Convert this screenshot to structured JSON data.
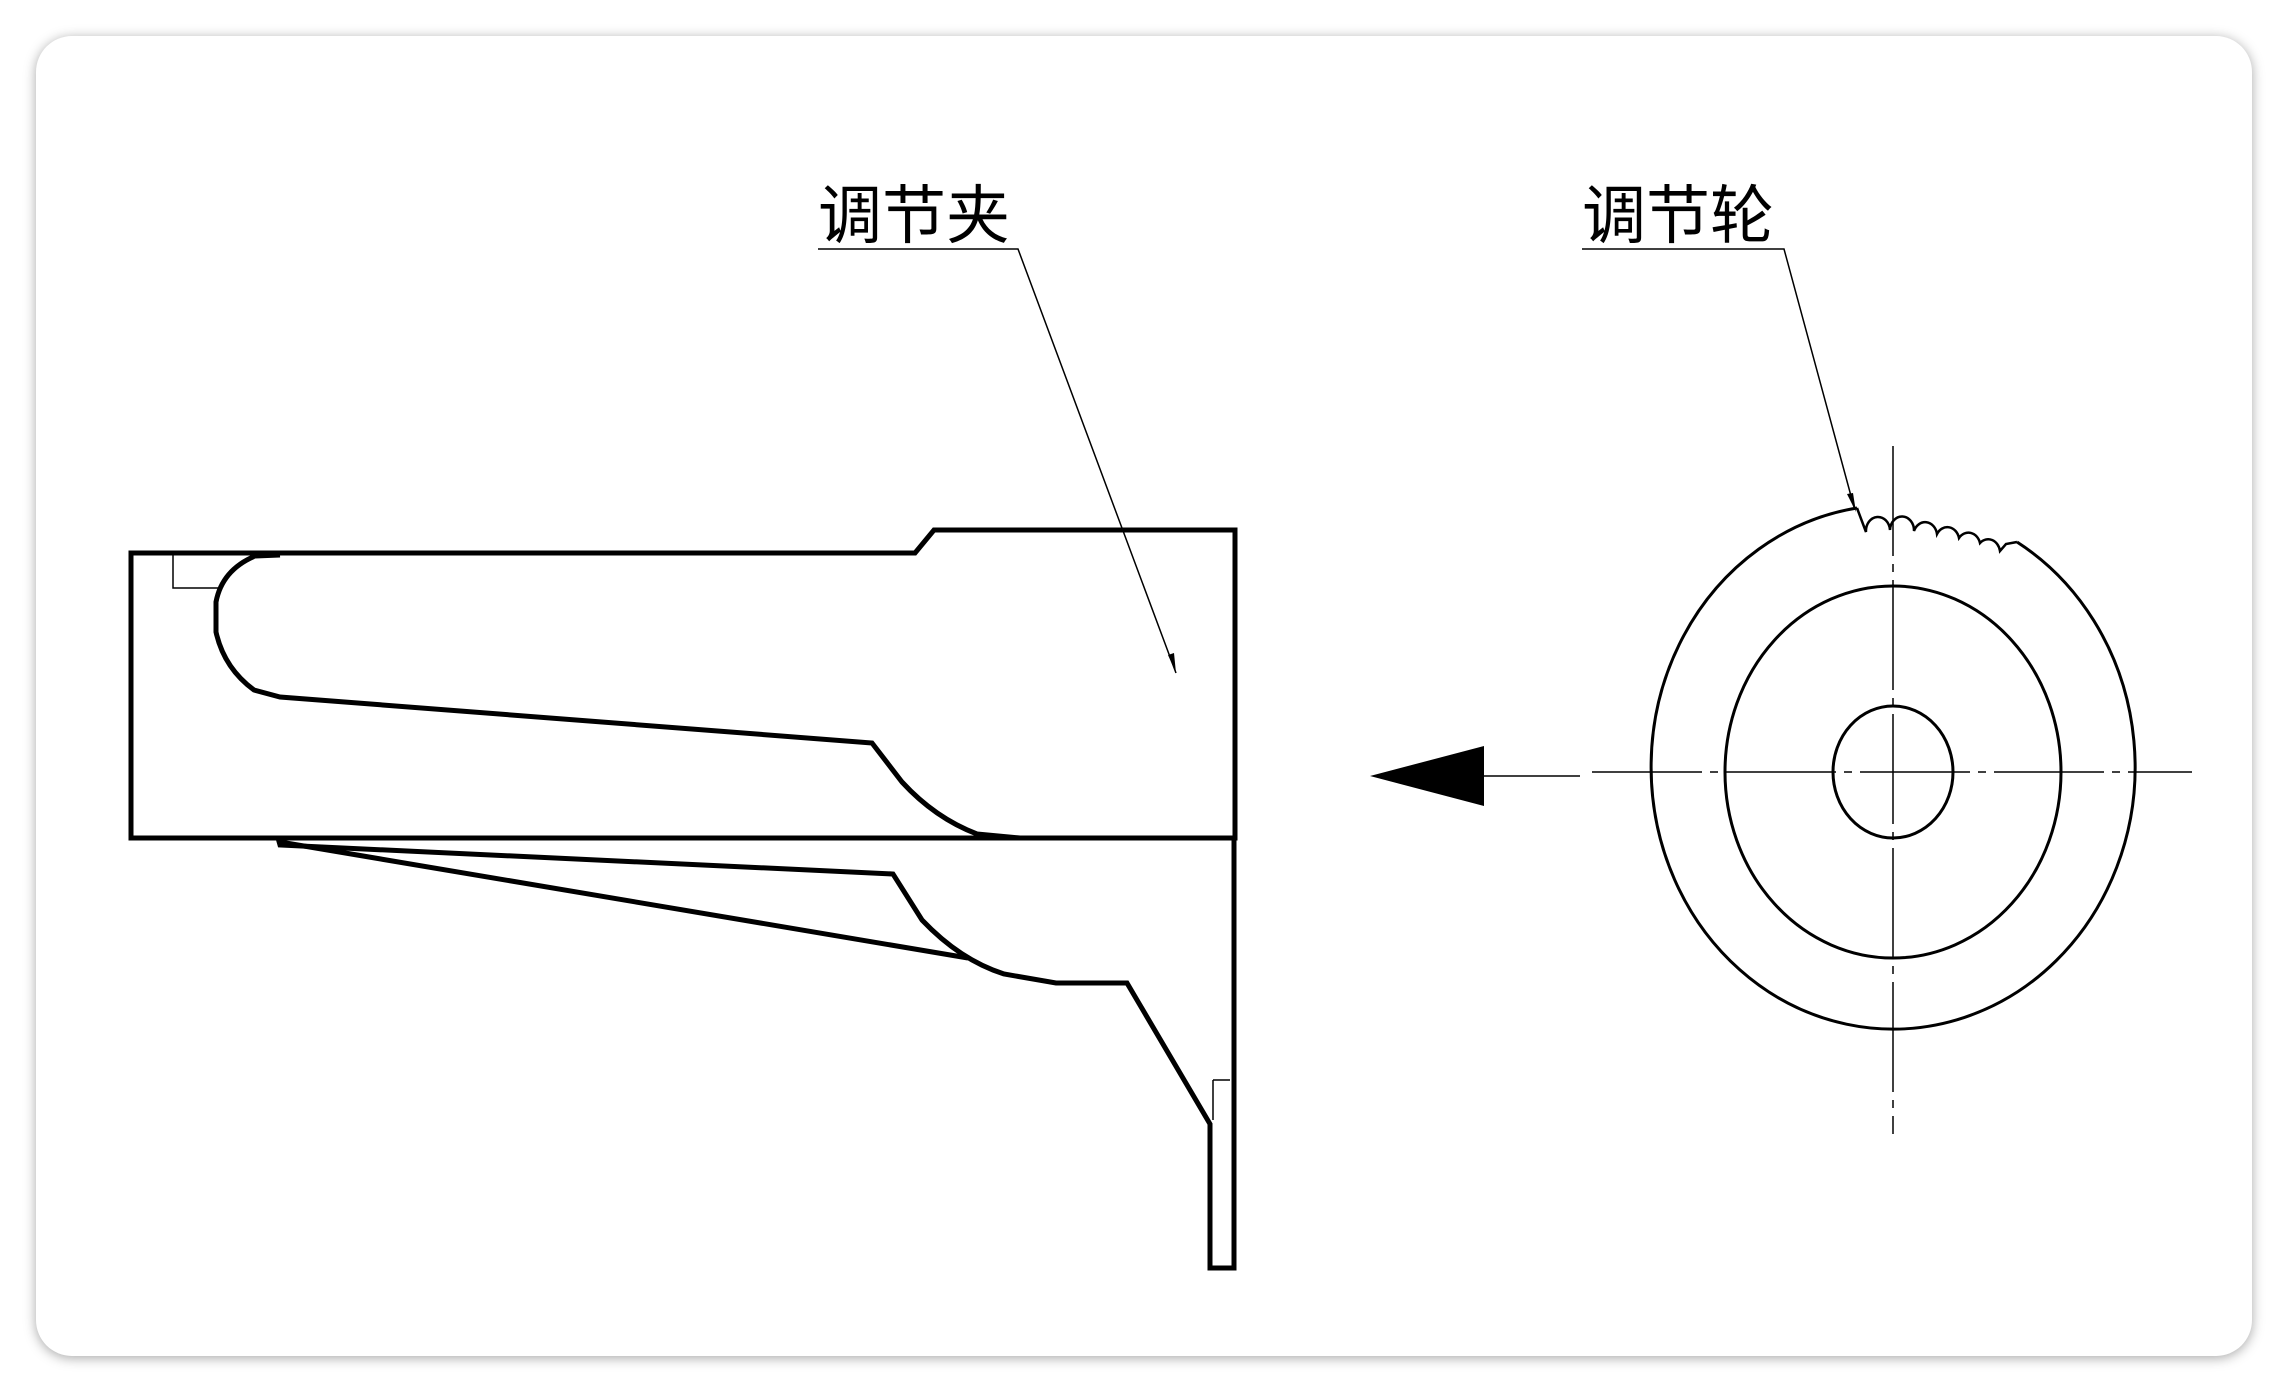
{
  "labels": {
    "clip": "调节夹",
    "wheel": "调节轮"
  },
  "colors": {
    "stroke": "#000000",
    "background": "#ffffff"
  }
}
